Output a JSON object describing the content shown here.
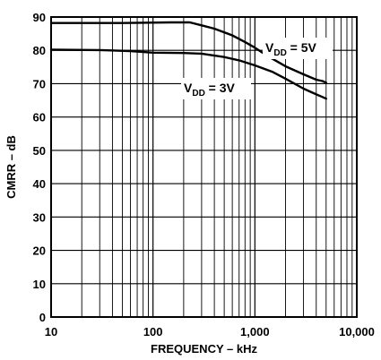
{
  "chart_data": {
    "type": "line",
    "title": "",
    "xlabel": "FREQUENCY – kHz",
    "ylabel": "CMRR – dB",
    "x_scale": "log",
    "xlim": [
      10,
      10000
    ],
    "ylim": [
      0,
      90
    ],
    "grid": true,
    "x_tick_labels": [
      {
        "value": 10,
        "label": "10"
      },
      {
        "value": 100,
        "label": "100"
      },
      {
        "value": 1000,
        "label": "1,000"
      },
      {
        "value": 10000,
        "label": "10,000"
      }
    ],
    "y_tick_labels": [
      {
        "value": 0,
        "label": "0"
      },
      {
        "value": 10,
        "label": "10"
      },
      {
        "value": 20,
        "label": "20"
      },
      {
        "value": 30,
        "label": "30"
      },
      {
        "value": 40,
        "label": "40"
      },
      {
        "value": 50,
        "label": "50"
      },
      {
        "value": 60,
        "label": "60"
      },
      {
        "value": 70,
        "label": "70"
      },
      {
        "value": 80,
        "label": "80"
      },
      {
        "value": 90,
        "label": "90"
      }
    ],
    "series": [
      {
        "name": "VDD = 5V",
        "label_main": "V",
        "label_sub": "DD",
        "label_rest": " = 5V",
        "x": [
          10,
          50,
          150,
          230,
          300,
          400,
          600,
          800,
          1000,
          1300,
          2000,
          3000,
          4000,
          4600,
          5000
        ],
        "y": [
          88.2,
          88.2,
          88.4,
          88.4,
          87.5,
          86.5,
          84.5,
          82.5,
          80.8,
          78.5,
          75.2,
          72.8,
          71.2,
          70.8,
          70.3
        ]
      },
      {
        "name": "VDD = 3V",
        "label_main": "V",
        "label_sub": "DD",
        "label_rest": " = 3V",
        "x": [
          10,
          30,
          60,
          100,
          200,
          300,
          500,
          700,
          1000,
          1500,
          2000,
          3000,
          4000,
          4600,
          5000
        ],
        "y": [
          80.2,
          80.1,
          79.8,
          79.3,
          79.2,
          79.0,
          78.0,
          77.0,
          75.5,
          73.5,
          71.5,
          68.5,
          66.8,
          66.0,
          65.5
        ]
      }
    ]
  }
}
